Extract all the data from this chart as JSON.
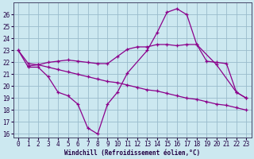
{
  "line1_x": [
    0,
    1,
    2,
    3,
    4,
    5,
    6,
    7,
    8,
    9,
    10,
    11,
    13,
    14,
    15,
    16,
    17,
    18,
    20,
    22,
    23
  ],
  "line1_y": [
    23,
    21.6,
    21.6,
    20.8,
    19.5,
    19.2,
    18.5,
    16.5,
    16.0,
    18.5,
    19.5,
    21.1,
    23.0,
    24.5,
    26.2,
    26.5,
    26.0,
    23.5,
    21.8,
    19.5,
    19.0
  ],
  "line2_x": [
    0,
    1,
    2,
    3,
    4,
    5,
    6,
    7,
    8,
    9,
    10,
    11,
    12,
    13,
    14,
    15,
    16,
    17,
    18,
    19,
    20,
    21,
    22,
    23
  ],
  "line2_y": [
    23.0,
    21.9,
    21.8,
    21.6,
    21.4,
    21.2,
    21.0,
    20.8,
    20.6,
    20.4,
    20.3,
    20.1,
    19.9,
    19.7,
    19.6,
    19.4,
    19.2,
    19.0,
    18.9,
    18.7,
    18.5,
    18.4,
    18.2,
    18.0
  ],
  "line3_x": [
    1,
    2,
    3,
    4,
    5,
    6,
    7,
    8,
    9,
    10,
    11,
    12,
    13,
    14,
    15,
    16,
    17,
    18,
    19,
    20,
    21,
    22,
    23
  ],
  "line3_y": [
    21.7,
    21.8,
    22.0,
    22.1,
    22.2,
    22.1,
    22.0,
    21.9,
    21.9,
    22.5,
    23.1,
    23.3,
    23.3,
    23.5,
    23.5,
    23.4,
    23.5,
    23.5,
    22.1,
    22.0,
    21.9,
    19.5,
    19.0
  ],
  "line_color": "#8b008b",
  "bg_color": "#cce8f0",
  "grid_color": "#99bbcc",
  "xlabel": "Windchill (Refroidissement éolien,°C)",
  "xlim_min": -0.5,
  "xlim_max": 23.5,
  "ylim_min": 15.7,
  "ylim_max": 27.0,
  "yticks": [
    16,
    17,
    18,
    19,
    20,
    21,
    22,
    23,
    24,
    25,
    26
  ],
  "xticks": [
    0,
    1,
    2,
    3,
    4,
    5,
    6,
    7,
    8,
    9,
    10,
    11,
    12,
    13,
    14,
    15,
    16,
    17,
    18,
    19,
    20,
    21,
    22,
    23
  ]
}
